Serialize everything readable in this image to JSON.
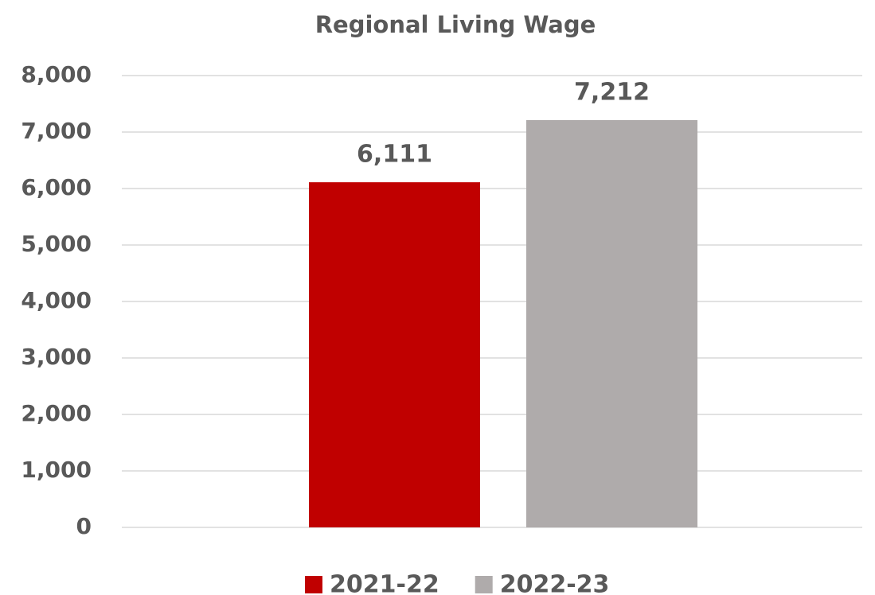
{
  "chart_data": {
    "type": "bar",
    "title": "Regional Living Wage",
    "categories": [
      null
    ],
    "series": [
      {
        "name": "2021-22",
        "color": "#c00000",
        "values": [
          6111
        ],
        "value_labels": [
          "6,111"
        ]
      },
      {
        "name": "2022-23",
        "color": "#afabab",
        "values": [
          7212
        ],
        "value_labels": [
          "7,212"
        ]
      }
    ],
    "ylim": [
      0,
      8000
    ],
    "yticks": [
      0,
      {
        "value": 1000,
        "label": "1,000"
      },
      {
        "value": 2000,
        "label": "2,000"
      },
      {
        "value": 3000,
        "label": "3,000"
      },
      {
        "value": 4000,
        "label": "4,000"
      },
      {
        "value": 5000,
        "label": "5,000"
      },
      {
        "value": 6000,
        "label": "6,000"
      },
      {
        "value": 7000,
        "label": "7,000"
      },
      {
        "value": 8000,
        "label": "8,000"
      }
    ],
    "grid": true,
    "legend": "bottom"
  }
}
